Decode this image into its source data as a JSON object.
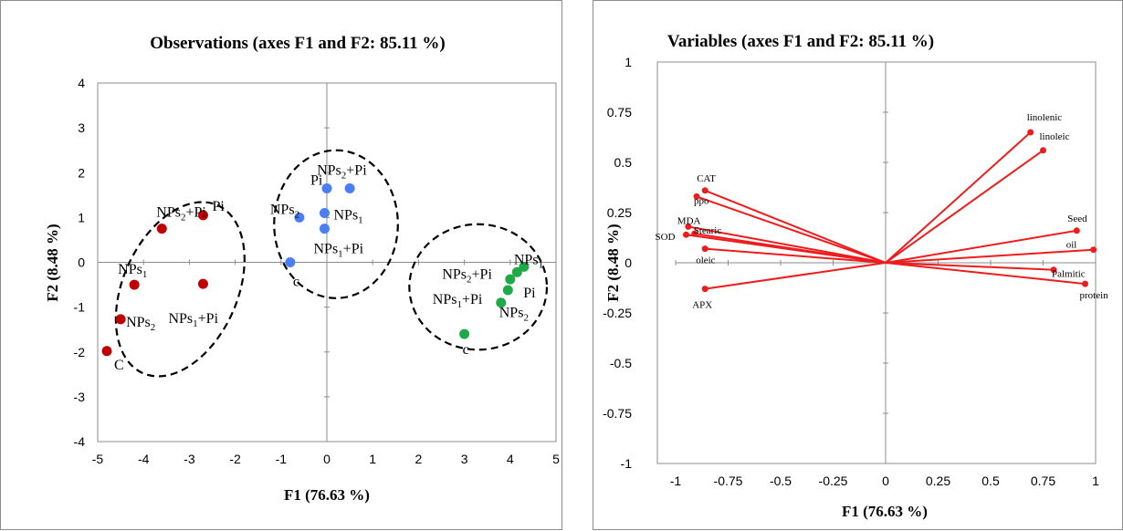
{
  "chart_data": [
    {
      "type": "scatter",
      "title": "Observations (axes F1 and F2: 85.11 %)",
      "xlabel": "F1 (76.63 %)",
      "ylabel": "F2 (8.48 %)",
      "xlim": [
        -5,
        5
      ],
      "ylim": [
        -4,
        4
      ],
      "xticks": [
        "-5",
        "-4",
        "-3",
        "-2",
        "-1",
        "0",
        "1",
        "2",
        "3",
        "4",
        "5"
      ],
      "yticks": [
        "-4",
        "-3",
        "-2",
        "-1",
        "0",
        "1",
        "2",
        "3",
        "4"
      ],
      "grid": false,
      "colors": {
        "group1": "#c00000",
        "group2": "#4a7ef5",
        "group3": "#1faa4a"
      },
      "series": [
        {
          "color_key": "group1",
          "points": [
            {
              "x": -2.7,
              "y": 1.05,
              "label": "Pi"
            },
            {
              "x": -3.6,
              "y": 0.75,
              "label": "NPs2+Pi"
            },
            {
              "x": -4.2,
              "y": -0.5,
              "label": "NPs1"
            },
            {
              "x": -2.7,
              "y": -0.48,
              "label": "NPs1+Pi"
            },
            {
              "x": -4.5,
              "y": -1.27,
              "label": "NPs2"
            },
            {
              "x": -4.8,
              "y": -1.98,
              "label": "C"
            }
          ]
        },
        {
          "color_key": "group2",
          "points": [
            {
              "x": 0.0,
              "y": 1.65,
              "label": "Pi"
            },
            {
              "x": 0.5,
              "y": 1.65,
              "label": "NPs2+Pi"
            },
            {
              "x": -0.6,
              "y": 1.0,
              "label": "NPs2"
            },
            {
              "x": -0.05,
              "y": 1.1,
              "label": "NPs1"
            },
            {
              "x": -0.05,
              "y": 0.75,
              "label": "NPs1+Pi"
            },
            {
              "x": -0.8,
              "y": 0.0,
              "label": "c"
            }
          ]
        },
        {
          "color_key": "group3",
          "points": [
            {
              "x": 4.3,
              "y": -0.1,
              "label": "NPs1"
            },
            {
              "x": 4.15,
              "y": -0.22,
              "label": "NPs2+Pi"
            },
            {
              "x": 4.0,
              "y": -0.38,
              "label": "NPs1+Pi"
            },
            {
              "x": 3.95,
              "y": -0.62,
              "label": "Pi"
            },
            {
              "x": 3.8,
              "y": -0.9,
              "label": "NPs2"
            },
            {
              "x": 3.0,
              "y": -1.6,
              "label": "c"
            }
          ]
        }
      ],
      "clusters": [
        {
          "cx": -3.2,
          "cy": -0.6,
          "rx": 1.25,
          "ry": 2.05,
          "rotate_deg": 24
        },
        {
          "cx": 0.2,
          "cy": 0.85,
          "rx": 1.35,
          "ry": 1.65,
          "rotate_deg": 0
        },
        {
          "cx": 3.3,
          "cy": -0.55,
          "rx": 1.5,
          "ry": 1.4,
          "rotate_deg": 0
        }
      ]
    },
    {
      "type": "biplot",
      "title": "Variables (axes F1 and F2: 85.11 %)",
      "xlabel": "F1 (76.63 %)",
      "ylabel": "F2 (8.48 %)",
      "xlim": [
        -1,
        1
      ],
      "ylim": [
        -1,
        1
      ],
      "xticks": [
        "-1",
        "-0.75",
        "-0.5",
        "-0.25",
        "0",
        "0.25",
        "0.5",
        "0.75",
        "1"
      ],
      "yticks": [
        "-1",
        "-0.75",
        "-0.5",
        "-0.25",
        "0",
        "0.25",
        "0.5",
        "0.75",
        "1"
      ],
      "grid": false,
      "vector_color": "#ee1c1c",
      "vectors": [
        {
          "name": "linolenic",
          "x": 0.69,
          "y": 0.65
        },
        {
          "name": "linoleic",
          "x": 0.75,
          "y": 0.56
        },
        {
          "name": "Seed",
          "x": 0.91,
          "y": 0.16
        },
        {
          "name": "oil",
          "x": 0.99,
          "y": 0.065
        },
        {
          "name": "Palmitic",
          "x": 0.8,
          "y": -0.035
        },
        {
          "name": "protein",
          "x": 0.95,
          "y": -0.105
        },
        {
          "name": "CAT",
          "x": -0.86,
          "y": 0.36
        },
        {
          "name": "ppo",
          "x": -0.9,
          "y": 0.33
        },
        {
          "name": "MDA",
          "x": -0.94,
          "y": 0.18
        },
        {
          "name": "Stearic",
          "x": -0.91,
          "y": 0.145
        },
        {
          "name": "SOD",
          "x": -0.95,
          "y": 0.14
        },
        {
          "name": "oleic",
          "x": -0.86,
          "y": 0.07
        },
        {
          "name": "APX",
          "x": -0.86,
          "y": -0.13
        }
      ]
    }
  ]
}
